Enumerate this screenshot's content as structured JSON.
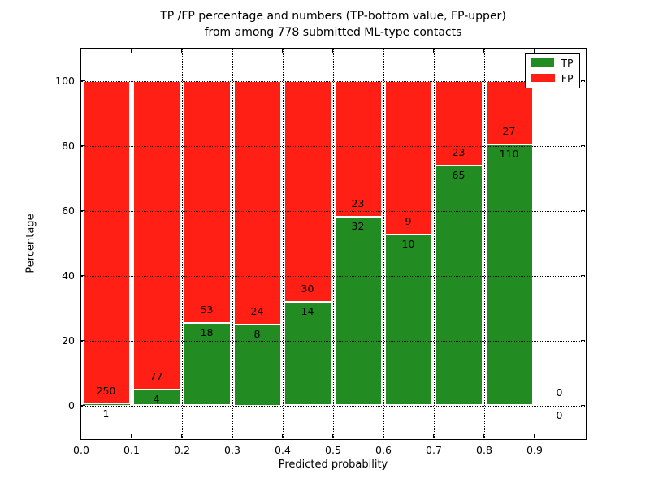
{
  "chart_data": {
    "type": "bar",
    "stacked": true,
    "title_line1": "TP /FP percentage and numbers (TP-bottom value, FP-upper)",
    "title_line2": "from among 778 submitted ML-type contacts",
    "xlabel": "Predicted probability",
    "ylabel": "Percentage",
    "xlim": [
      0.0,
      1.0
    ],
    "ylim": [
      -10,
      110
    ],
    "x_ticks": [
      "0.0",
      "0.1",
      "0.2",
      "0.3",
      "0.4",
      "0.5",
      "0.6",
      "0.7",
      "0.8",
      "0.9"
    ],
    "y_ticks": [
      0,
      20,
      40,
      60,
      80,
      100
    ],
    "grid": true,
    "legend_position": "upper right",
    "series": [
      {
        "name": "TP",
        "color": "#228b22"
      },
      {
        "name": "FP",
        "color": "#ff1f15"
      }
    ],
    "bins": [
      {
        "x0": 0.0,
        "x1": 0.1,
        "tp": 1,
        "fp": 250
      },
      {
        "x0": 0.1,
        "x1": 0.2,
        "tp": 4,
        "fp": 77
      },
      {
        "x0": 0.2,
        "x1": 0.3,
        "tp": 18,
        "fp": 53
      },
      {
        "x0": 0.3,
        "x1": 0.4,
        "tp": 8,
        "fp": 24
      },
      {
        "x0": 0.4,
        "x1": 0.5,
        "tp": 14,
        "fp": 30
      },
      {
        "x0": 0.5,
        "x1": 0.6,
        "tp": 32,
        "fp": 23
      },
      {
        "x0": 0.6,
        "x1": 0.7,
        "tp": 10,
        "fp": 9
      },
      {
        "x0": 0.7,
        "x1": 0.8,
        "tp": 65,
        "fp": 23
      },
      {
        "x0": 0.8,
        "x1": 0.9,
        "tp": 110,
        "fp": 27
      },
      {
        "x0": 0.9,
        "x1": 1.0,
        "tp": 0,
        "fp": 0
      }
    ]
  }
}
